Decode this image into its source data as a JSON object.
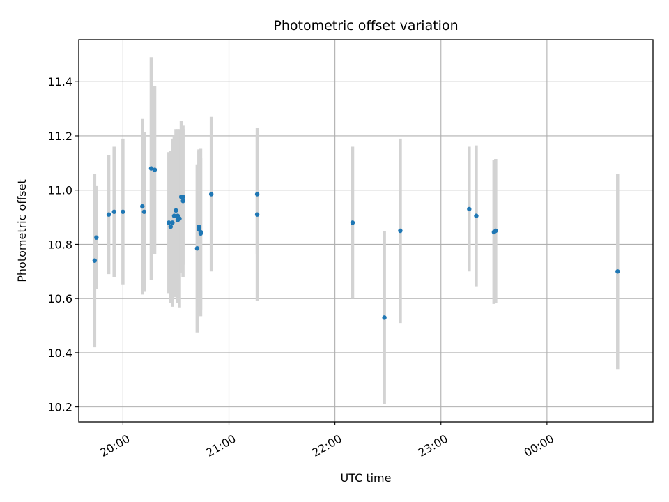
{
  "chart_data": {
    "type": "scatter",
    "title": "Photometric offset variation",
    "xlabel": "UTC time",
    "ylabel": "Photometric offset",
    "x_is_time": true,
    "xlim": [
      "19:35",
      "25:00"
    ],
    "ylim": [
      10.145,
      11.555
    ],
    "grid": true,
    "x_ticks": [
      {
        "value": "20:00",
        "label": "20:00"
      },
      {
        "value": "21:00",
        "label": "21:00"
      },
      {
        "value": "22:00",
        "label": "22:00"
      },
      {
        "value": "23:00",
        "label": "23:00"
      },
      {
        "value": "24:00",
        "label": "00:00"
      }
    ],
    "y_ticks": [
      10.2,
      10.4,
      10.6,
      10.8,
      11.0,
      11.2,
      11.4
    ],
    "y_tick_labels": [
      "10.2",
      "10.4",
      "10.6",
      "10.8",
      "11.0",
      "11.2",
      "11.4"
    ],
    "colors": {
      "marker": "#1f77b4",
      "errorbar": "#d3d3d3",
      "grid": "#b0b0b0",
      "axis": "#000000"
    },
    "series": [
      {
        "points": [
          {
            "x": "19:44",
            "y": 10.74,
            "err": 0.32
          },
          {
            "x": "19:45",
            "y": 10.825,
            "err": 0.19
          },
          {
            "x": "19:52",
            "y": 10.91,
            "err": 0.22
          },
          {
            "x": "19:55",
            "y": 10.92,
            "err": 0.24
          },
          {
            "x": "20:00",
            "y": 10.92,
            "err": 0.27
          },
          {
            "x": "20:11",
            "y": 10.94,
            "err": 0.325
          },
          {
            "x": "20:12",
            "y": 10.92,
            "err": 0.295
          },
          {
            "x": "20:16",
            "y": 11.08,
            "err": 0.41
          },
          {
            "x": "20:18",
            "y": 11.075,
            "err": 0.31
          },
          {
            "x": "20:26",
            "y": 10.88,
            "err": 0.26
          },
          {
            "x": "20:27",
            "y": 10.865,
            "err": 0.28
          },
          {
            "x": "20:28",
            "y": 10.88,
            "err": 0.31
          },
          {
            "x": "20:29",
            "y": 10.905,
            "err": 0.3
          },
          {
            "x": "20:30",
            "y": 10.925,
            "err": 0.3
          },
          {
            "x": "20:31",
            "y": 10.905,
            "err": 0.32
          },
          {
            "x": "20:31",
            "y": 10.89,
            "err": 0.3
          },
          {
            "x": "20:32",
            "y": 10.895,
            "err": 0.33
          },
          {
            "x": "20:33",
            "y": 10.975,
            "err": 0.28
          },
          {
            "x": "20:34",
            "y": 10.975,
            "err": 0.25
          },
          {
            "x": "20:34",
            "y": 10.96,
            "err": 0.28
          },
          {
            "x": "20:42",
            "y": 10.785,
            "err": 0.31
          },
          {
            "x": "20:43",
            "y": 10.865,
            "err": 0.285
          },
          {
            "x": "20:43",
            "y": 10.855,
            "err": 0.29
          },
          {
            "x": "20:44",
            "y": 10.845,
            "err": 0.31
          },
          {
            "x": "20:44",
            "y": 10.84,
            "err": 0.28
          },
          {
            "x": "20:50",
            "y": 10.985,
            "err": 0.285
          },
          {
            "x": "21:16",
            "y": 10.985,
            "err": 0.22
          },
          {
            "x": "21:16",
            "y": 10.91,
            "err": 0.32
          },
          {
            "x": "22:10",
            "y": 10.88,
            "err": 0.28
          },
          {
            "x": "22:28",
            "y": 10.53,
            "err": 0.32
          },
          {
            "x": "22:37",
            "y": 10.85,
            "err": 0.34
          },
          {
            "x": "23:16",
            "y": 10.93,
            "err": 0.23
          },
          {
            "x": "23:20",
            "y": 10.905,
            "err": 0.26
          },
          {
            "x": "23:30",
            "y": 10.845,
            "err": 0.265
          },
          {
            "x": "23:31",
            "y": 10.85,
            "err": 0.265
          },
          {
            "x": "24:40",
            "y": 10.7,
            "err": 0.36
          }
        ]
      }
    ]
  }
}
